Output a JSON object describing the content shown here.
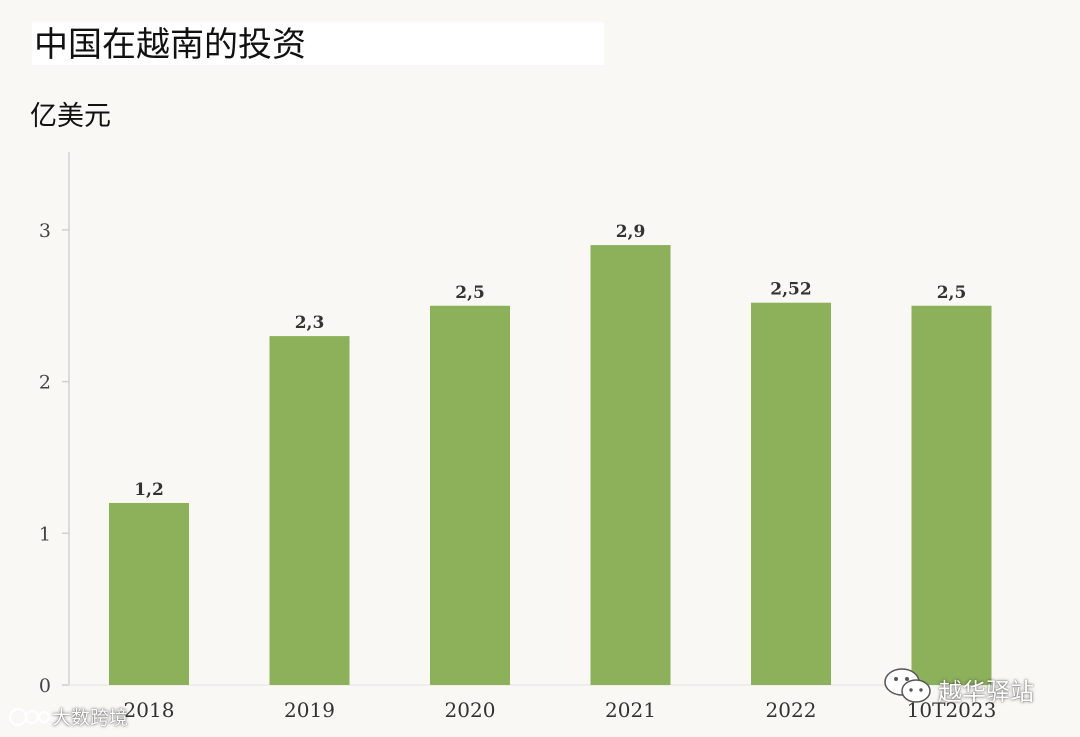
{
  "chart_data": {
    "type": "bar",
    "title": "中国在越南的投资",
    "ylabel": "亿美元",
    "categories": [
      "2018",
      "2019",
      "2020",
      "2021",
      "2022",
      "10T2023"
    ],
    "values": [
      1.2,
      2.3,
      2.5,
      2.9,
      2.52,
      2.5
    ],
    "data_labels": [
      "1,2",
      "2,3",
      "2,5",
      "2,9",
      "2,52",
      "2,5"
    ],
    "yticks": [
      0,
      1,
      2,
      3
    ],
    "ylim": [
      0,
      3.5
    ],
    "grid": false,
    "bar_color": "#8cb15a"
  },
  "watermarks": {
    "left": "大数跨境",
    "right": "越华驿站"
  }
}
